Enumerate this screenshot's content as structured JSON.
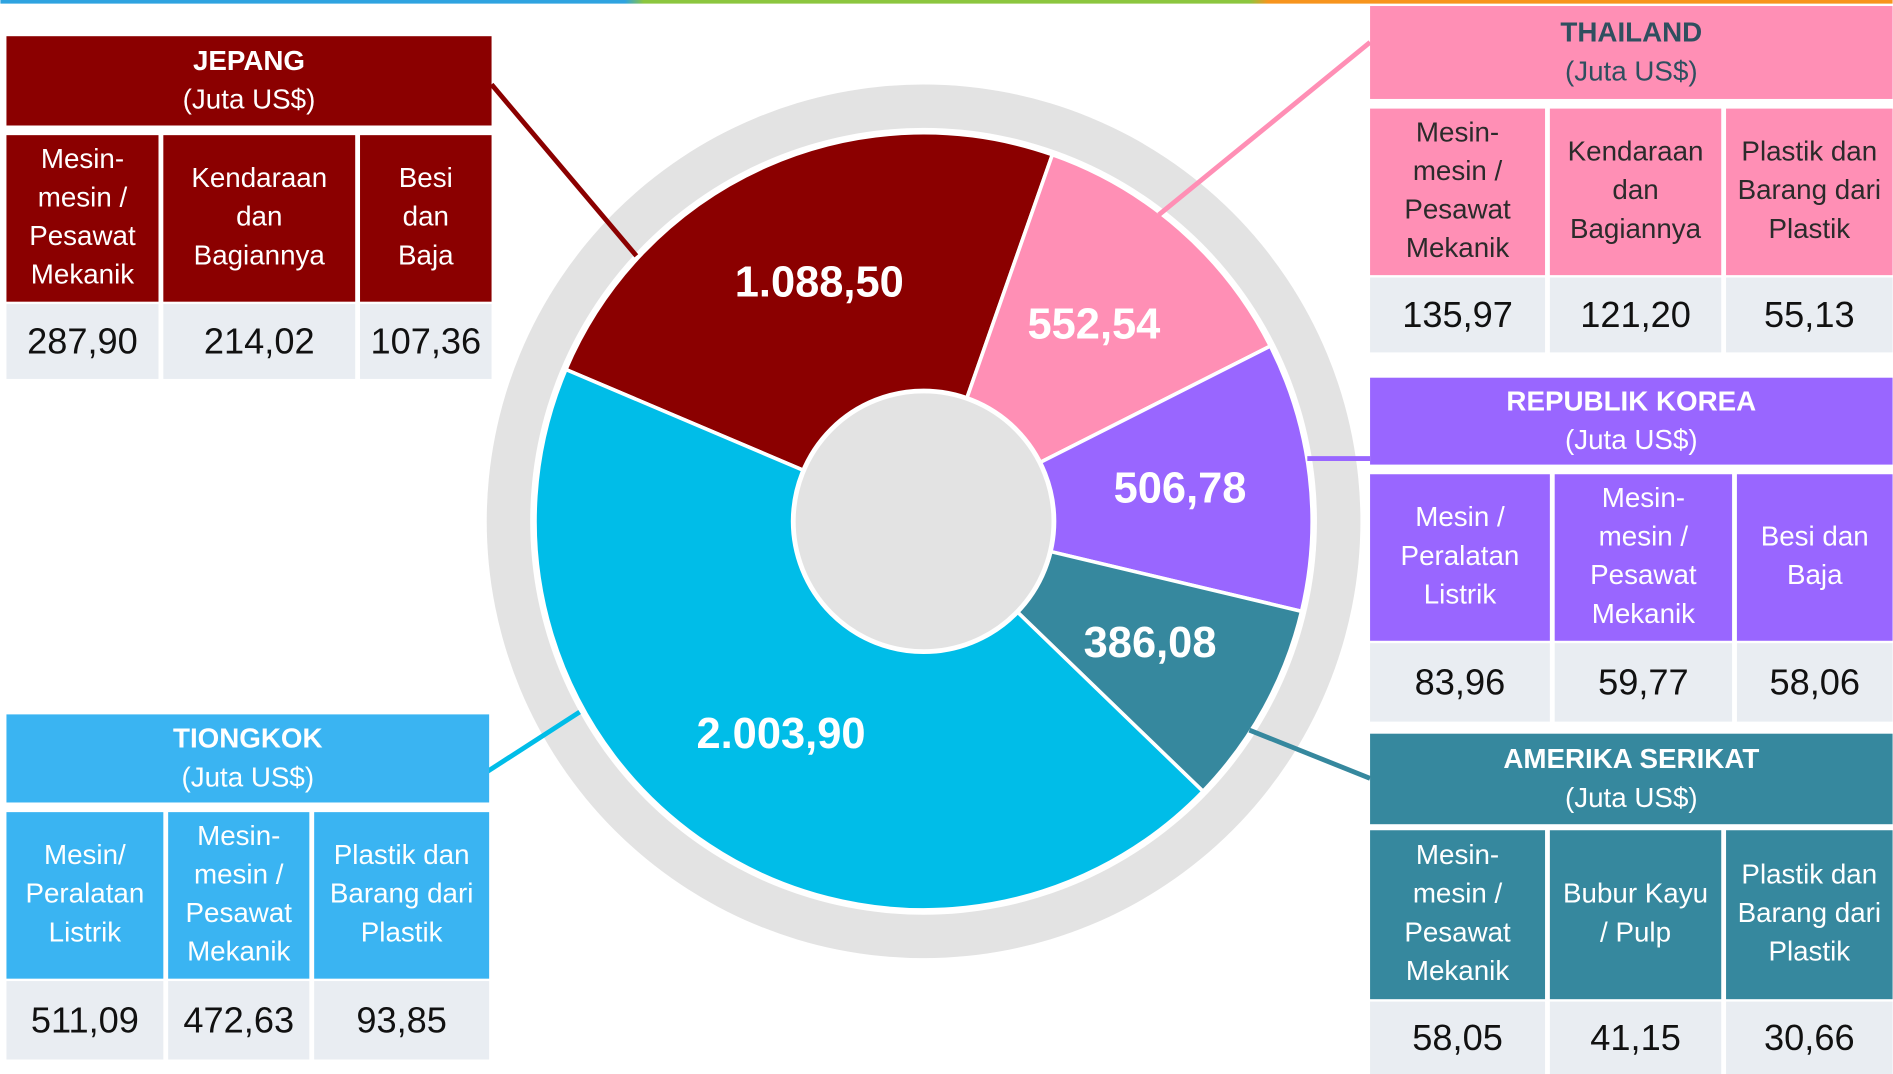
{
  "chart_data": {
    "type": "pie",
    "values": [
      1088.5,
      552.54,
      506.78,
      386.08,
      2003.9
    ],
    "value_labels": [
      "1.088,50",
      "552,54",
      "506,78",
      "386,08",
      "2.003,90"
    ],
    "colors": [
      "#8b0000",
      "#ff8fb5",
      "#9966ff",
      "#36889e",
      "#00bde8"
    ]
  },
  "tables": [
    {
      "title": "JEPANG",
      "unit": "(Juta US$)",
      "headers": [
        [
          "Mesin-",
          "mesin /",
          "Pesawat",
          "Mekanik"
        ],
        [
          "Kendaraan",
          "dan",
          "Bagiannya"
        ],
        [
          "Besi",
          "dan",
          "Baja"
        ]
      ],
      "values": [
        "287,90",
        "214,02",
        "107,36"
      ]
    },
    {
      "title": "THAILAND",
      "unit": "(Juta US$)",
      "headers": [
        [
          "Mesin-",
          "mesin /",
          "Pesawat",
          "Mekanik"
        ],
        [
          "Kendaraan",
          "dan",
          "Bagiannya"
        ],
        [
          "Plastik dan",
          "Barang dari",
          "Plastik"
        ]
      ],
      "values": [
        "135,97",
        "121,20",
        "55,13"
      ]
    },
    {
      "title": "REPUBLIK KOREA",
      "unit": "(Juta US$)",
      "headers": [
        [
          "Mesin /",
          "Peralatan",
          "Listrik"
        ],
        [
          "Mesin-",
          "mesin /",
          "Pesawat",
          "Mekanik"
        ],
        [
          "Besi dan",
          "Baja"
        ]
      ],
      "values": [
        "83,96",
        "59,77",
        "58,06"
      ]
    },
    {
      "title": "AMERIKA SERIKAT",
      "unit": "(Juta US$)",
      "headers": [
        [
          "Mesin-",
          "mesin /",
          "Pesawat",
          "Mekanik"
        ],
        [
          "Bubur Kayu",
          "/ Pulp"
        ],
        [
          "Plastik dan",
          "Barang dari",
          "Plastik"
        ]
      ],
      "values": [
        "58,05",
        "41,15",
        "30,66"
      ]
    },
    {
      "title": "TIONGKOK",
      "unit": "(Juta US$)",
      "headers": [
        [
          "Mesin/",
          "Peralatan",
          "Listrik"
        ],
        [
          "Mesin-",
          "mesin /",
          "Pesawat",
          "Mekanik"
        ],
        [
          "Plastik dan",
          "Barang dari",
          "Plastik"
        ]
      ],
      "values": [
        "511,09",
        "472,63",
        "93,85"
      ]
    }
  ]
}
